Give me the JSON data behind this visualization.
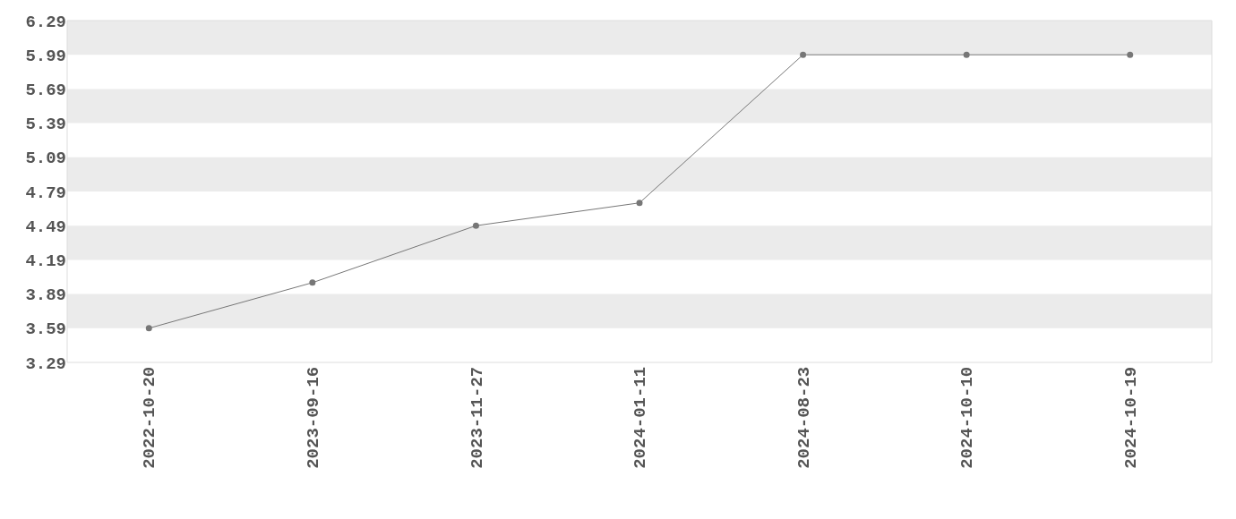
{
  "chart_data": {
    "type": "line",
    "categories": [
      "2022-10-20",
      "2023-09-16",
      "2023-11-27",
      "2024-01-11",
      "2024-08-23",
      "2024-10-10",
      "2024-10-19"
    ],
    "series": [
      {
        "color": "#777777",
        "values": [
          3.59,
          3.99,
          4.49,
          4.69,
          5.99,
          5.99,
          5.99
        ]
      }
    ],
    "ylim": [
      3.29,
      6.29
    ],
    "yticks": [
      3.29,
      3.59,
      3.89,
      4.19,
      4.49,
      4.79,
      5.09,
      5.39,
      5.69,
      5.99,
      6.29
    ],
    "marker": "circle",
    "line_style": "solid"
  }
}
